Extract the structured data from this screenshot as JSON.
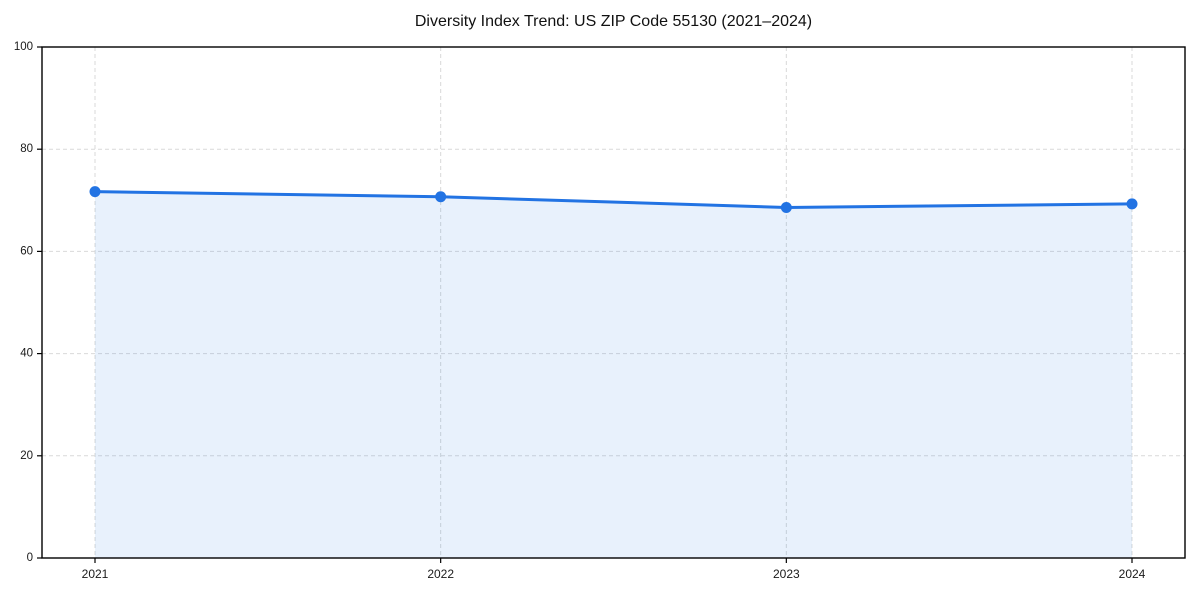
{
  "page": {
    "background": "#ffffff"
  },
  "chart_data": {
    "type": "area",
    "title": "Diversity Index Trend: US ZIP Code 55130 (2021–2024)",
    "x": [
      "2021",
      "2022",
      "2023",
      "2024"
    ],
    "series": [
      {
        "name": "Diversity Index",
        "values": [
          71.7,
          70.7,
          68.6,
          69.3
        ]
      }
    ],
    "ylim": [
      0,
      100
    ],
    "yticks": [
      0,
      20,
      40,
      60,
      80,
      100
    ],
    "xlabel": "",
    "ylabel": "",
    "grid": true,
    "grid_style": "dashed",
    "legend": "none",
    "markers": true,
    "colors": {
      "line": "#2273e3",
      "marker": "#2273e3",
      "fill": "rgba(34,115,227,0.10)",
      "grid": "#d9d9d9",
      "axis": "#000000",
      "tick_label": "#1a1a1a",
      "title": "#111111"
    }
  }
}
